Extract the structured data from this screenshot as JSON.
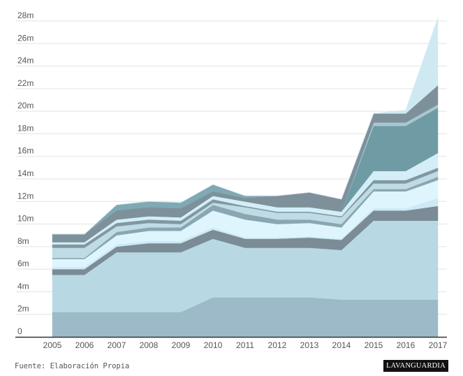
{
  "chart_data": {
    "type": "area",
    "stacked": true,
    "title": "",
    "xlabel": "",
    "ylabel": "",
    "x": [
      "2005",
      "2006",
      "2007",
      "2008",
      "2009",
      "2010",
      "2011",
      "2012",
      "2013",
      "2014",
      "2015",
      "2016",
      "2017"
    ],
    "y_ticks": [
      "0",
      "2m",
      "4m",
      "6m",
      "8m",
      "10m",
      "12m",
      "14m",
      "16m",
      "18m",
      "20m",
      "22m",
      "24m",
      "26m",
      "28m"
    ],
    "ylim": [
      0,
      28
    ],
    "grid": true,
    "legend": "none",
    "series": [
      {
        "color": "#9dbac8",
        "values": [
          2.2,
          2.2,
          2.2,
          2.2,
          2.2,
          3.5,
          3.5,
          3.5,
          3.5,
          3.3,
          3.3,
          3.3,
          3.3
        ]
      },
      {
        "color": "#b8d8e3",
        "values": [
          3.3,
          3.3,
          5.3,
          5.3,
          5.3,
          5.2,
          4.4,
          4.4,
          4.4,
          4.4,
          7.0,
          7.0,
          7.0
        ]
      },
      {
        "color": "#7b8c96",
        "values": [
          0.5,
          0.5,
          0.5,
          0.8,
          0.8,
          0.8,
          0.8,
          0.8,
          0.9,
          0.9,
          0.9,
          0.9,
          1.3
        ]
      },
      {
        "color": "#cdeaf4",
        "values": [
          0.2,
          0.2,
          0.2,
          0.2,
          0.2,
          0.2,
          0.1,
          0.1,
          0.1,
          0.1,
          0.2,
          0.2,
          0.7
        ]
      },
      {
        "color": "#def5fd",
        "values": [
          0.7,
          0.7,
          0.8,
          0.9,
          0.9,
          1.5,
          1.6,
          1.2,
          1.2,
          1.0,
          1.5,
          1.5,
          1.6
        ]
      },
      {
        "color": "#8aa6b0",
        "values": [
          0.1,
          0.1,
          0.3,
          0.3,
          0.3,
          0.5,
          0.5,
          0.4,
          0.3,
          0.3,
          0.2,
          0.2,
          0.3
        ]
      },
      {
        "color": "#bfdbe6",
        "values": [
          0.9,
          0.9,
          0.5,
          0.4,
          0.3,
          0.2,
          0.6,
          0.6,
          0.6,
          0.6,
          0.5,
          0.5,
          0.5
        ]
      },
      {
        "color": "#8198a2",
        "values": [
          0.3,
          0.3,
          0.3,
          0.3,
          0.3,
          0.3,
          0.1,
          0.1,
          0.1,
          0.1,
          0.3,
          0.3,
          0.3
        ]
      },
      {
        "color": "#d4eef7",
        "values": [
          0.2,
          0.2,
          0.3,
          0.3,
          0.3,
          0.3,
          0.4,
          0.4,
          0.4,
          0.4,
          0.8,
          0.8,
          1.3
        ]
      },
      {
        "color": "#6f9ba5",
        "values": [
          0.0,
          0.0,
          0.0,
          0.0,
          0.0,
          0.0,
          0.0,
          0.0,
          0.0,
          0.0,
          4.0,
          4.0,
          4.0
        ]
      },
      {
        "color": "#a7c7d1",
        "values": [
          0.0,
          0.0,
          0.0,
          0.0,
          0.0,
          0.0,
          0.0,
          0.0,
          0.0,
          0.0,
          0.3,
          0.3,
          0.3
        ]
      },
      {
        "color": "#7e919b",
        "values": [
          0.7,
          0.7,
          0.8,
          0.8,
          0.8,
          0.4,
          0.3,
          1.0,
          1.3,
          1.1,
          0.8,
          0.8,
          1.7
        ]
      },
      {
        "color": "#7fa9b4",
        "values": [
          0.0,
          0.0,
          0.5,
          0.5,
          0.5,
          0.6,
          0.2,
          0.0,
          0.0,
          0.0,
          0.0,
          0.0,
          0.0
        ]
      },
      {
        "color": "#cfe9f3",
        "values": [
          0.0,
          0.0,
          0.0,
          0.0,
          0.0,
          0.0,
          0.0,
          0.0,
          0.0,
          0.0,
          0.0,
          0.3,
          6.0
        ]
      }
    ]
  },
  "footer": {
    "source": "Fuente: Elaboración Propia",
    "logo": "LAVANGUARDIA"
  }
}
